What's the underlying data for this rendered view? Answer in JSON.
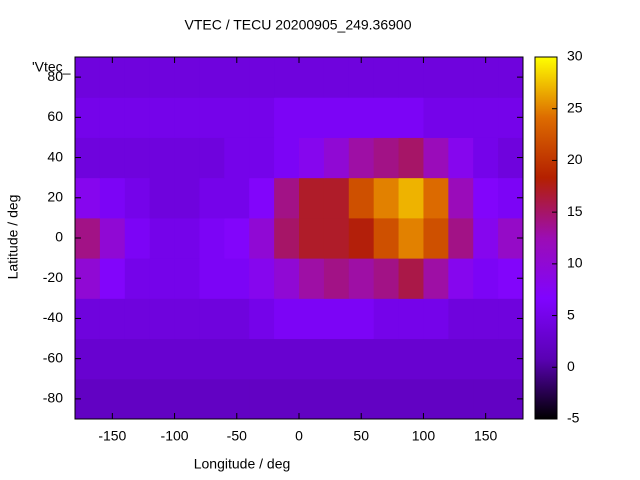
{
  "chart_data": {
    "type": "heatmap",
    "title": "VTEC / TECU 20200905_249.36900",
    "key_label": "'Vtec_",
    "x_label": "Longitude / deg",
    "y_label": "Latitude / deg",
    "x": [
      -170,
      -150,
      -130,
      -110,
      -90,
      -70,
      -50,
      -30,
      -10,
      10,
      30,
      50,
      70,
      90,
      110,
      130,
      150,
      170
    ],
    "y": [
      -80,
      -60,
      -40,
      -20,
      0,
      20,
      40,
      60,
      80
    ],
    "z": [
      [
        2,
        2,
        2,
        2,
        2,
        2,
        2,
        2,
        2,
        2,
        2,
        2,
        2,
        2,
        2,
        2,
        2,
        2
      ],
      [
        3,
        3,
        3,
        3,
        3,
        3,
        3,
        3,
        3,
        3,
        3,
        3,
        3,
        3,
        3,
        3,
        3,
        3
      ],
      [
        4,
        4,
        4,
        4,
        4,
        4,
        4,
        5,
        6,
        6,
        6,
        6,
        5,
        5,
        5,
        4,
        4,
        4
      ],
      [
        10,
        7,
        5,
        5,
        5,
        6,
        6,
        8,
        10,
        13,
        14,
        13,
        14,
        16,
        13,
        8,
        6,
        7
      ],
      [
        14,
        10,
        6,
        5,
        5,
        6,
        7,
        10,
        15,
        17,
        17,
        18,
        22,
        25,
        22,
        14,
        8,
        11
      ],
      [
        8,
        6,
        5,
        4,
        4,
        5,
        5,
        7,
        14,
        17,
        17,
        22,
        25,
        27,
        24,
        12,
        7,
        6
      ],
      [
        4,
        4,
        4,
        4,
        4,
        4,
        5,
        5,
        6,
        8,
        10,
        13,
        14,
        15,
        12,
        8,
        5,
        4
      ],
      [
        5,
        5,
        5,
        5,
        5,
        5,
        5,
        5,
        6,
        6,
        6,
        6,
        6,
        6,
        5,
        5,
        5,
        5
      ],
      [
        4,
        4,
        4,
        4,
        4,
        4,
        4,
        4,
        4,
        4,
        4,
        4,
        4,
        4,
        4,
        4,
        4,
        4
      ]
    ],
    "xlim": [
      -180,
      180
    ],
    "ylim": [
      -90,
      90
    ],
    "xticks": [
      -150,
      -100,
      -50,
      0,
      50,
      100,
      150
    ],
    "yticks": [
      -80,
      -60,
      -40,
      -20,
      0,
      20,
      40,
      60,
      80
    ],
    "cblim": [
      -5,
      30
    ],
    "cbticks": [
      -5,
      0,
      5,
      10,
      15,
      20,
      25,
      30
    ],
    "colorscale": [
      "#000000",
      "#5a01b4",
      "#8004ff",
      "#9c0db4",
      "#b42000",
      "#dd6c00",
      "#ffff00"
    ],
    "grid": false
  }
}
